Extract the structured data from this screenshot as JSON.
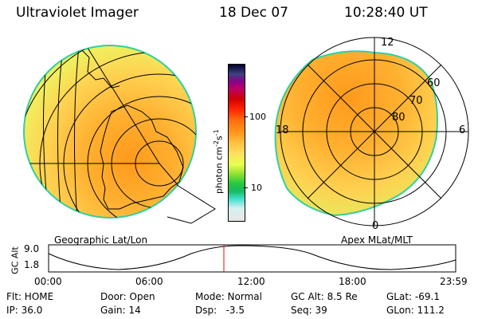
{
  "header": {
    "instrument": "Ultraviolet Imager",
    "date": "18 Dec 07",
    "time": "10:28:40 UT"
  },
  "colors": {
    "palette": [
      "#e6e6e6",
      "#d8f0f0",
      "#40e0d0",
      "#18b860",
      "#28c840",
      "#90e030",
      "#e8ff50",
      "#ffe060",
      "#ffc040",
      "#ff9a1c",
      "#ff7010",
      "#ff2000",
      "#d00000",
      "#c00060",
      "#880088",
      "#404080",
      "#000030"
    ],
    "grid": "#000000",
    "marker": "#ff0000",
    "limb": "#30d0a0"
  },
  "geo_panel": {
    "label": "Geographic Lat/Lon"
  },
  "apex_panel": {
    "label": "Apex MLat/MLT",
    "mlt_labels": {
      "top": "12",
      "left": "18",
      "right": "6",
      "bottom": "0"
    },
    "lat_labels": [
      "60",
      "70",
      "80"
    ]
  },
  "colorbar": {
    "unit_label": "photon cm",
    "unit_sup1": "-2",
    "unit_mid": "s",
    "unit_sup2": "-1",
    "ticks": [
      "100",
      "10"
    ]
  },
  "altitude_plot": {
    "axis_label": "GC Alt",
    "y_ticks": [
      "9.0",
      "1.8"
    ],
    "x_ticks": [
      "00:00",
      "06:00",
      "12:00",
      "18:00",
      "23:59"
    ]
  },
  "info": {
    "row1": {
      "filter": "Flt: HOME",
      "door": "Door: Open",
      "mode": "Mode: Normal",
      "gc_alt": "GC Alt: 8.5 Re",
      "glat": "GLat: -69.1"
    },
    "row2": {
      "ip": "IP: 36.0",
      "gain": "Gain: 14",
      "dsp": "Dsp:   -3.5",
      "seq": "Seq: 39",
      "glon": "GLon: 111.2"
    }
  }
}
